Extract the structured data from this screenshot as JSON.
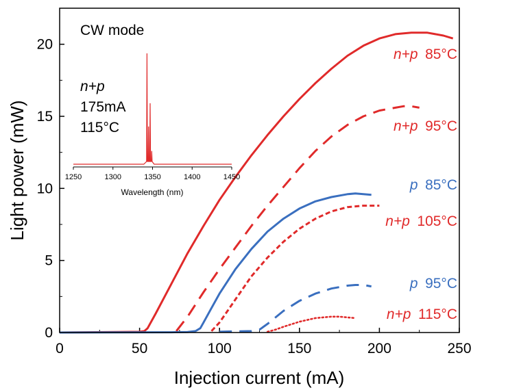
{
  "chart_data": {
    "type": "line",
    "title": "",
    "xlabel": "Injection current (mA)",
    "ylabel": "Light power (mW)",
    "xlim": [
      0,
      250
    ],
    "ylim": [
      0,
      22.5
    ],
    "xticks": [
      0,
      50,
      100,
      150,
      200,
      250
    ],
    "yticks": [
      0,
      5,
      10,
      15,
      20
    ],
    "grid": false,
    "mode_label": "CW mode",
    "colors": {
      "red": "#e02a2a",
      "blue": "#3a6fbf"
    },
    "series": [
      {
        "name_italic": "n+p",
        "name_temp": "85°C",
        "color": "#e02a2a",
        "dash": "solid",
        "x": [
          0,
          50,
          53,
          55,
          60,
          70,
          80,
          90,
          100,
          110,
          120,
          130,
          140,
          150,
          160,
          170,
          180,
          190,
          200,
          210,
          220,
          230,
          240,
          246
        ],
        "y": [
          0,
          0.05,
          0.1,
          0.3,
          1.3,
          3.4,
          5.5,
          7.4,
          9.2,
          10.8,
          12.3,
          13.7,
          15.0,
          16.2,
          17.3,
          18.3,
          19.2,
          19.9,
          20.4,
          20.7,
          20.8,
          20.8,
          20.6,
          20.4
        ]
      },
      {
        "name_italic": "n+p",
        "name_temp": "95°C",
        "color": "#e02a2a",
        "dash": "long",
        "x": [
          73,
          80,
          90,
          100,
          110,
          120,
          130,
          140,
          150,
          160,
          170,
          180,
          190,
          200,
          210,
          215,
          220,
          225
        ],
        "y": [
          0.1,
          1.1,
          2.8,
          4.4,
          5.9,
          7.4,
          8.8,
          10.1,
          11.4,
          12.6,
          13.6,
          14.4,
          15.0,
          15.4,
          15.6,
          15.7,
          15.7,
          15.6
        ]
      },
      {
        "name_italic": "p",
        "name_temp": "85°C",
        "color": "#3a6fbf",
        "dash": "solid",
        "x": [
          0,
          70,
          80,
          85,
          88,
          90,
          95,
          100,
          110,
          120,
          130,
          140,
          150,
          160,
          170,
          180,
          185,
          190,
          195
        ],
        "y": [
          0,
          0.02,
          0.04,
          0.1,
          0.3,
          0.7,
          1.7,
          2.7,
          4.4,
          5.8,
          7.0,
          7.9,
          8.6,
          9.1,
          9.4,
          9.6,
          9.65,
          9.6,
          9.55
        ]
      },
      {
        "name_italic": "n+p",
        "name_temp": "105°C",
        "color": "#e02a2a",
        "dash": "short",
        "x": [
          95,
          100,
          105,
          110,
          120,
          130,
          140,
          150,
          160,
          170,
          180,
          190,
          200
        ],
        "y": [
          0.1,
          0.7,
          1.5,
          2.3,
          3.9,
          5.2,
          6.3,
          7.2,
          7.9,
          8.4,
          8.7,
          8.8,
          8.8
        ]
      },
      {
        "name_italic": "p",
        "name_temp": "95°C",
        "color": "#3a6fbf",
        "dash": "long",
        "x": [
          100,
          110,
          120,
          125,
          130,
          140,
          150,
          160,
          170,
          180,
          185,
          190,
          195
        ],
        "y": [
          0.05,
          0.08,
          0.1,
          0.2,
          0.6,
          1.5,
          2.2,
          2.7,
          3.05,
          3.25,
          3.3,
          3.3,
          3.2
        ]
      },
      {
        "name_italic": "n+p",
        "name_temp": "115°C",
        "color": "#e02a2a",
        "dash": "dot",
        "x": [
          130,
          135,
          140,
          150,
          160,
          170,
          175,
          180,
          185
        ],
        "y": [
          0.05,
          0.2,
          0.4,
          0.75,
          1.0,
          1.1,
          1.1,
          1.05,
          1.0
        ]
      }
    ],
    "inset": {
      "annotation_italic": "n+p",
      "annotation_current": "175mA",
      "annotation_temp": "115°C",
      "xlabel": "Wavelength (nm)",
      "xlim": [
        1250,
        1450
      ],
      "xticks": [
        1250,
        1300,
        1350,
        1400,
        1450
      ],
      "peaks": [
        {
          "x": 1343,
          "h": 1.0
        },
        {
          "x": 1345,
          "h": 0.34
        },
        {
          "x": 1347,
          "h": 0.55
        },
        {
          "x": 1349,
          "h": 0.12
        }
      ],
      "color": "#e02a2a"
    }
  }
}
